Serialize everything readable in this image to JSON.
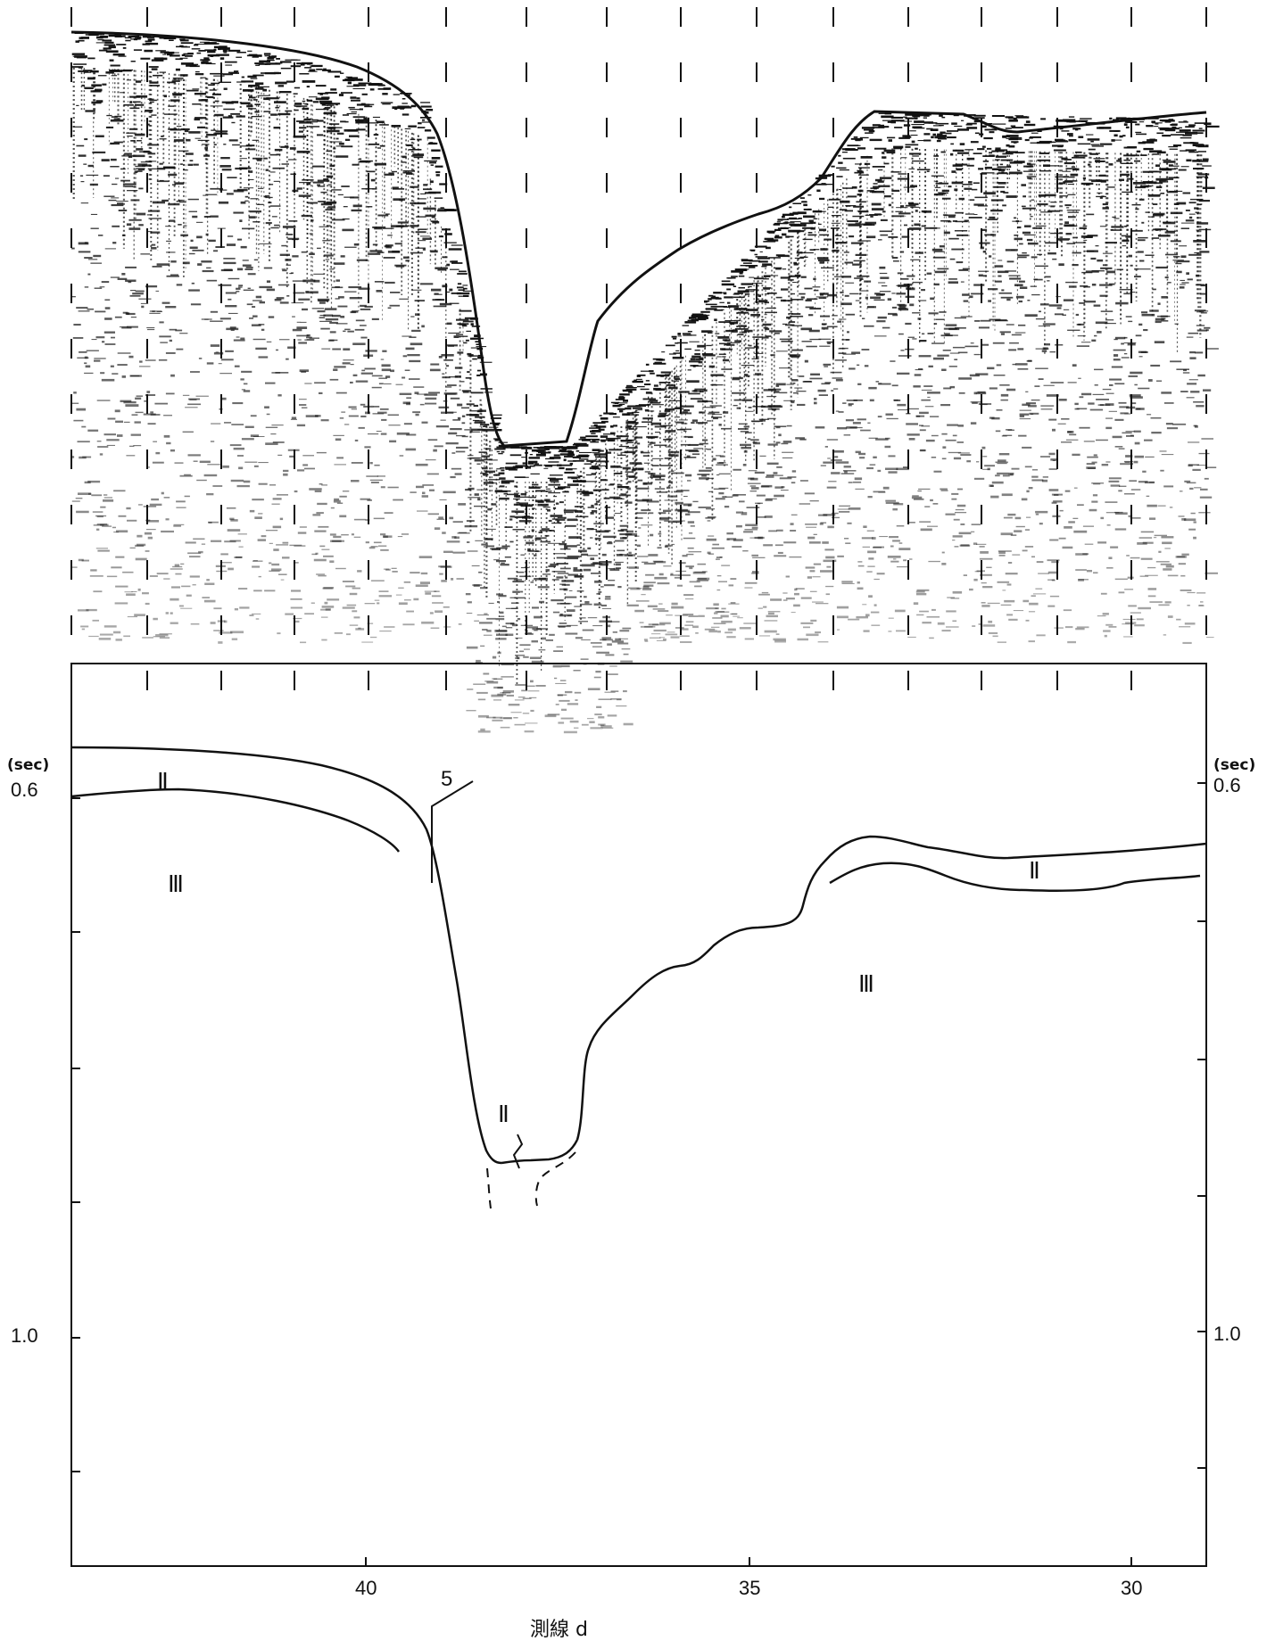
{
  "figure": {
    "time_unit": "(sec)",
    "left_tick_labels": [
      "0.6",
      "1.0"
    ],
    "right_tick_labels": [
      "0.6",
      "1.0"
    ],
    "x_tick_labels": [
      "40",
      "35",
      "30"
    ],
    "x_axis_label": "測線 d",
    "fault_label": "5",
    "unit_labels": [
      {
        "text": "Ⅱ"
      },
      {
        "text": "Ⅲ"
      },
      {
        "text": "Ⅱ"
      },
      {
        "text": "Ⅲ"
      },
      {
        "text": "Ⅱ"
      }
    ]
  },
  "colors": {
    "ink": "#111111",
    "paper": "#ffffff"
  }
}
